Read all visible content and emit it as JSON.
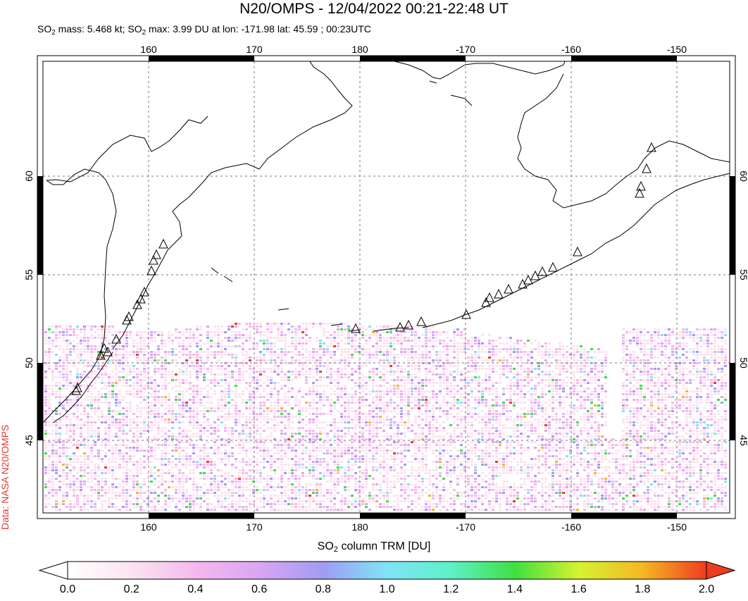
{
  "header": {
    "title": "N20/OMPS - 12/04/2022 00:21-22:48 UT",
    "subtitle_mass_label": "SO",
    "subtitle_mass_sub": "2",
    "subtitle_mass_text": " mass: 5.468 kt; SO",
    "subtitle_max_sub": "2",
    "subtitle_rest": " max: 3.99 DU at lon: -171.98 lat: 45.59 ; 00:23UTC"
  },
  "credit": "Data: NASA N20/OMPS",
  "map": {
    "lon_ticks_top": [
      "160",
      "170",
      "180",
      "-170",
      "-160",
      "-150"
    ],
    "lon_ticks_bottom": [
      "160",
      "170",
      "180",
      "-170",
      "-160",
      "-150"
    ],
    "lat_ticks_left": [
      "60",
      "55",
      "50",
      "45"
    ],
    "lat_ticks_right": [
      "60",
      "55",
      "50",
      "45"
    ],
    "colors": {
      "frame": "#000000",
      "grid": "#777777",
      "coast": "#000000"
    }
  },
  "colorbar": {
    "title_pre": "SO",
    "title_sub": "2",
    "title_post": " column TRM [DU]",
    "ticks": [
      "0.0",
      "0.2",
      "0.4",
      "0.6",
      "0.8",
      "1.0",
      "1.2",
      "1.4",
      "1.6",
      "1.8",
      "2.0"
    ],
    "stops": [
      "#ffffff",
      "#fbe4f0",
      "#f5b8ee",
      "#d9a6f3",
      "#9f9cf3",
      "#7fe4f7",
      "#5ef0c8",
      "#3fe042",
      "#d6f230",
      "#f5b723",
      "#ef3b1f"
    ]
  }
}
